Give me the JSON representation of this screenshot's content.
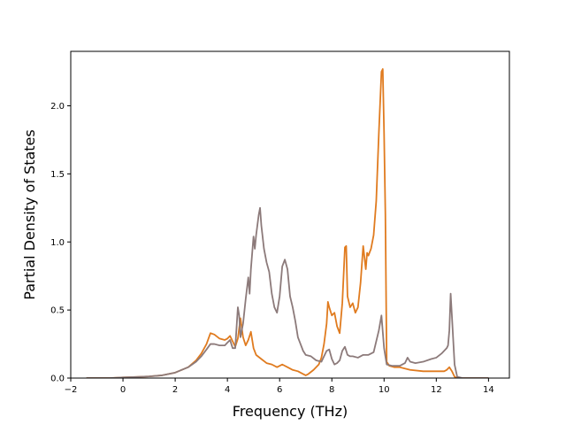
{
  "chart_data": {
    "type": "line",
    "title": "",
    "xlabel": "Frequency (THz)",
    "ylabel": "Partial Density of States",
    "xlim": [
      -2,
      14.8
    ],
    "ylim": [
      0,
      2.4
    ],
    "xticks": [
      -2,
      0,
      2,
      4,
      6,
      8,
      10,
      12,
      14
    ],
    "yticks": [
      0.0,
      0.5,
      1.0,
      1.5,
      2.0
    ],
    "xtick_labels": [
      "−2",
      "0",
      "2",
      "4",
      "6",
      "8",
      "10",
      "12",
      "14"
    ],
    "ytick_labels": [
      "0.0",
      "0.5",
      "1.0",
      "1.5",
      "2.0"
    ],
    "grid": false,
    "legend": "none",
    "series": [
      {
        "color": "#e07b1f",
        "x": [
          -1.4,
          -0.5,
          0.0,
          0.5,
          1.0,
          1.5,
          2.0,
          2.5,
          2.8,
          3.0,
          3.2,
          3.35,
          3.5,
          3.7,
          3.9,
          4.0,
          4.1,
          4.2,
          4.3,
          4.4,
          4.5,
          4.6,
          4.7,
          4.8,
          4.9,
          5.0,
          5.1,
          5.3,
          5.5,
          5.7,
          5.9,
          6.0,
          6.1,
          6.3,
          6.5,
          6.7,
          6.9,
          7.0,
          7.1,
          7.3,
          7.5,
          7.6,
          7.7,
          7.8,
          7.85,
          7.9,
          8.0,
          8.1,
          8.2,
          8.3,
          8.4,
          8.5,
          8.55,
          8.6,
          8.7,
          8.8,
          8.9,
          9.0,
          9.1,
          9.2,
          9.3,
          9.35,
          9.4,
          9.5,
          9.6,
          9.7,
          9.8,
          9.9,
          9.95,
          10.0,
          10.05,
          10.1,
          10.2,
          10.4,
          10.6,
          10.8,
          11.0,
          11.5,
          12.0,
          12.3,
          12.4,
          12.5,
          12.6,
          12.7,
          12.8,
          13.0,
          14.0
        ],
        "y": [
          0.0,
          0.0,
          0.005,
          0.008,
          0.012,
          0.02,
          0.04,
          0.08,
          0.13,
          0.18,
          0.25,
          0.33,
          0.32,
          0.29,
          0.28,
          0.29,
          0.31,
          0.27,
          0.23,
          0.29,
          0.44,
          0.3,
          0.24,
          0.28,
          0.34,
          0.22,
          0.17,
          0.14,
          0.11,
          0.1,
          0.08,
          0.09,
          0.1,
          0.08,
          0.06,
          0.05,
          0.03,
          0.02,
          0.03,
          0.06,
          0.1,
          0.15,
          0.25,
          0.4,
          0.56,
          0.52,
          0.46,
          0.48,
          0.38,
          0.33,
          0.55,
          0.96,
          0.97,
          0.6,
          0.52,
          0.55,
          0.48,
          0.52,
          0.7,
          0.97,
          0.8,
          0.92,
          0.9,
          0.95,
          1.05,
          1.3,
          1.8,
          2.25,
          2.27,
          1.8,
          1.2,
          0.12,
          0.09,
          0.08,
          0.08,
          0.07,
          0.06,
          0.05,
          0.05,
          0.05,
          0.06,
          0.08,
          0.05,
          0.01,
          0.0,
          0.0,
          0.0
        ]
      },
      {
        "color": "#8c7a7a",
        "x": [
          -1.4,
          -0.5,
          0.0,
          0.5,
          1.0,
          1.5,
          2.0,
          2.5,
          2.8,
          3.0,
          3.2,
          3.35,
          3.5,
          3.7,
          3.9,
          4.0,
          4.1,
          4.2,
          4.3,
          4.4,
          4.45,
          4.5,
          4.6,
          4.7,
          4.8,
          4.85,
          4.9,
          5.0,
          5.05,
          5.1,
          5.2,
          5.25,
          5.3,
          5.4,
          5.5,
          5.6,
          5.7,
          5.8,
          5.9,
          6.0,
          6.1,
          6.2,
          6.3,
          6.4,
          6.5,
          6.6,
          6.7,
          6.8,
          6.9,
          7.0,
          7.2,
          7.4,
          7.6,
          7.8,
          7.9,
          8.0,
          8.1,
          8.2,
          8.3,
          8.4,
          8.5,
          8.6,
          8.7,
          8.8,
          9.0,
          9.2,
          9.4,
          9.6,
          9.8,
          9.9,
          10.0,
          10.1,
          10.3,
          10.6,
          10.8,
          10.9,
          11.0,
          11.2,
          11.5,
          11.8,
          12.0,
          12.2,
          12.3,
          12.4,
          12.45,
          12.5,
          12.55,
          12.6,
          12.7,
          12.8,
          13.0,
          14.0
        ],
        "y": [
          0.0,
          0.0,
          0.005,
          0.008,
          0.012,
          0.02,
          0.04,
          0.08,
          0.12,
          0.16,
          0.21,
          0.25,
          0.25,
          0.24,
          0.24,
          0.26,
          0.28,
          0.22,
          0.22,
          0.52,
          0.46,
          0.3,
          0.4,
          0.58,
          0.74,
          0.62,
          0.8,
          1.04,
          0.95,
          1.05,
          1.2,
          1.25,
          1.12,
          0.95,
          0.85,
          0.78,
          0.62,
          0.52,
          0.48,
          0.6,
          0.82,
          0.87,
          0.8,
          0.6,
          0.52,
          0.42,
          0.3,
          0.25,
          0.2,
          0.17,
          0.16,
          0.13,
          0.12,
          0.2,
          0.21,
          0.14,
          0.1,
          0.11,
          0.13,
          0.2,
          0.23,
          0.17,
          0.16,
          0.16,
          0.15,
          0.17,
          0.17,
          0.19,
          0.35,
          0.46,
          0.22,
          0.1,
          0.09,
          0.09,
          0.11,
          0.15,
          0.12,
          0.11,
          0.12,
          0.14,
          0.15,
          0.18,
          0.2,
          0.22,
          0.24,
          0.35,
          0.62,
          0.45,
          0.1,
          0.01,
          0.0,
          0.0
        ]
      }
    ]
  }
}
